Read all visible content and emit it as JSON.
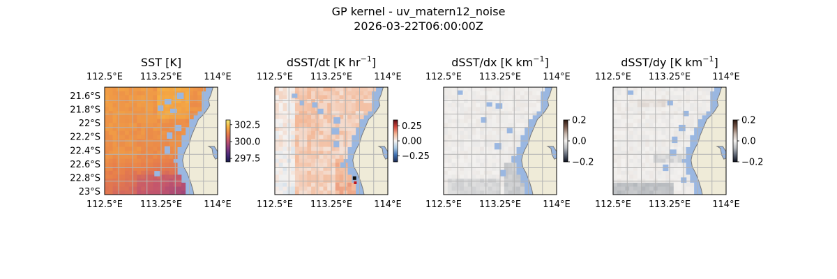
{
  "figure": {
    "title_line1": "GP kernel - uv_matern12_noise",
    "title_line2": "2026-03-22T06:00:00Z"
  },
  "colors": {
    "land": "#efebd8",
    "water_mask": "#9ab7e1",
    "grid": "#b3b3b3",
    "coast": "#7a7a7a",
    "frame": "#000000"
  },
  "chart_data": [
    {
      "type": "heatmap",
      "title": "SST [K]",
      "title_sup": "",
      "colormap": "thermal",
      "colorbar_ticks": [
        "302.5",
        "300.0",
        "297.5"
      ],
      "colorbar_range": [
        297.0,
        303.2
      ],
      "top_ticks": [
        "112.5°E",
        "113.25°E",
        "114°E"
      ],
      "bottom_ticks": [
        "112.5°E",
        "113.25°E",
        "114°E"
      ],
      "left_ticks": [
        "21.6°S",
        "21.8°S",
        "22°S",
        "22.2°S",
        "22.4°S",
        "22.6°S",
        "22.8°S",
        "23°S"
      ],
      "lon_range": [
        112.5,
        114.0
      ],
      "lat_range": [
        -23.05,
        -21.5
      ]
    },
    {
      "type": "heatmap",
      "title": "dSST/dt [K hr",
      "title_sup": "−1",
      "colormap": "diverging",
      "colorbar_ticks": [
        "0.25",
        "0.00",
        "−0.25"
      ],
      "colorbar_range": [
        -0.35,
        0.35
      ],
      "top_ticks": [
        "112.5°E",
        "113.25°E",
        "114°E"
      ],
      "bottom_ticks": [
        "112.5°E",
        "113.25°E",
        "114°E"
      ],
      "left_ticks": [],
      "lon_range": [
        112.5,
        114.0
      ],
      "lat_range": [
        -23.05,
        -21.5
      ]
    },
    {
      "type": "heatmap",
      "title": "dSST/dx [K km",
      "title_sup": "−1",
      "colormap": "gray-diverging",
      "colorbar_ticks": [
        "0.2",
        "0.0",
        "−0.2"
      ],
      "colorbar_range": [
        -0.2,
        0.2
      ],
      "top_ticks": [
        "112.5°E",
        "113.25°E",
        "114°E"
      ],
      "bottom_ticks": [
        "112.5°E",
        "113.25°E",
        "114°E"
      ],
      "left_ticks": [],
      "lon_range": [
        112.5,
        114.0
      ],
      "lat_range": [
        -23.05,
        -21.5
      ]
    },
    {
      "type": "heatmap",
      "title": "dSST/dy [K km",
      "title_sup": "−1",
      "colormap": "gray-diverging",
      "colorbar_ticks": [
        "0.2",
        "0.0",
        "−0.2"
      ],
      "colorbar_range": [
        -0.2,
        0.2
      ],
      "top_ticks": [
        "112.5°E",
        "113.25°E",
        "114°E"
      ],
      "bottom_ticks": [
        "112.5°E",
        "113.25°E",
        "114°E"
      ],
      "left_ticks": [],
      "lon_range": [
        112.5,
        114.0
      ],
      "lat_range": [
        -23.05,
        -21.5
      ]
    }
  ]
}
